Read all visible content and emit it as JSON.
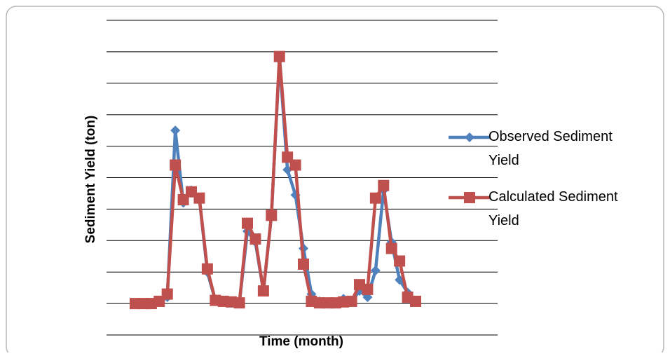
{
  "chart_data": {
    "type": "line",
    "x_label": "Time (month)",
    "y_label": "Sediment Yield (ton)",
    "categories": [
      null,
      null,
      null,
      null,
      null,
      null,
      null,
      null,
      null,
      null,
      null,
      null,
      null,
      null,
      null,
      null,
      null,
      null,
      null,
      null,
      null,
      null,
      null,
      null,
      null,
      null,
      null,
      null,
      null,
      null,
      null,
      null,
      null,
      null,
      null,
      null
    ],
    "series": [
      {
        "name": "Observed Sediment Yield",
        "color": "#4f81bd",
        "marker": "diamond",
        "values": [
          0,
          0,
          0,
          0.07,
          0.2,
          5.5,
          3.2,
          3.6,
          3.35,
          1.0,
          0.1,
          0.07,
          0.05,
          0.02,
          2.3,
          1.95,
          0.4,
          2.8,
          7.75,
          4.25,
          3.45,
          1.75,
          0.3,
          0.07,
          0.02,
          0.02,
          0.15,
          0.07,
          0.4,
          0.2,
          1.05,
          3.6,
          1.95,
          0.75,
          0.35,
          0.07
        ]
      },
      {
        "name": "Calculated Sediment Yield",
        "color": "#c0504d",
        "marker": "square",
        "values": [
          0,
          0,
          0,
          0.07,
          0.3,
          4.4,
          3.3,
          3.55,
          3.35,
          1.1,
          0.1,
          0.07,
          0.05,
          0.02,
          2.55,
          2.05,
          0.4,
          2.8,
          7.85,
          4.65,
          4.4,
          1.25,
          0.07,
          0.02,
          0.02,
          0.02,
          0.05,
          0.07,
          0.6,
          0.45,
          3.35,
          3.75,
          1.75,
          1.35,
          0.2,
          0.07
        ]
      }
    ],
    "ylim": [
      -1,
      9
    ],
    "yticks": [
      -1,
      0,
      1,
      2,
      3,
      4,
      5,
      6,
      7,
      8,
      9
    ],
    "grid": true,
    "legend": "right"
  }
}
